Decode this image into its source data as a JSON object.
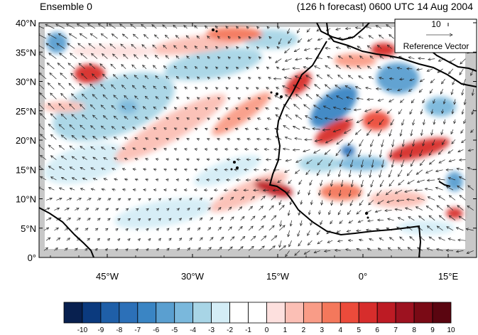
{
  "header": {
    "left": "Ensemble 0",
    "right": "(126 h forecast) 0600 UTC 14 Aug 2004"
  },
  "map": {
    "lon_range": [
      -57,
      20
    ],
    "lat_range": [
      0,
      40
    ],
    "y_tick_labels": [
      "0°",
      "5°N",
      "10°N",
      "15°N",
      "20°N",
      "25°N",
      "30°N",
      "35°N",
      "40°N"
    ],
    "x_tick_labels": [
      "45°W",
      "30°W",
      "15°W",
      "0°",
      "15°E"
    ],
    "ocean_color": "#ffffff",
    "coastline_color": "#000000",
    "missing_color": "#c8c8c8"
  },
  "reference_vector": {
    "magnitude": "10",
    "label": "Reference Vector"
  },
  "colorbar": {
    "labels": [
      "-10",
      "-9",
      "-8",
      "-7",
      "-6",
      "-5",
      "-4",
      "-3",
      "-2",
      "-1",
      "0",
      "1",
      "2",
      "3",
      "4",
      "5",
      "6",
      "7",
      "8",
      "9",
      "10"
    ],
    "colors": [
      "#08204f",
      "#0b3a7e",
      "#1f5fa8",
      "#2c70b8",
      "#3a85c4",
      "#5a9fd0",
      "#7ab8dc",
      "#a8d5e6",
      "#d4edf6",
      "#ffffff",
      "#ffffff",
      "#fde0de",
      "#fbbfb5",
      "#f99c87",
      "#f4785c",
      "#ec4b3b",
      "#d72d2c",
      "#bd1b24",
      "#9d1220",
      "#7a0a15",
      "#5a0510"
    ]
  }
}
